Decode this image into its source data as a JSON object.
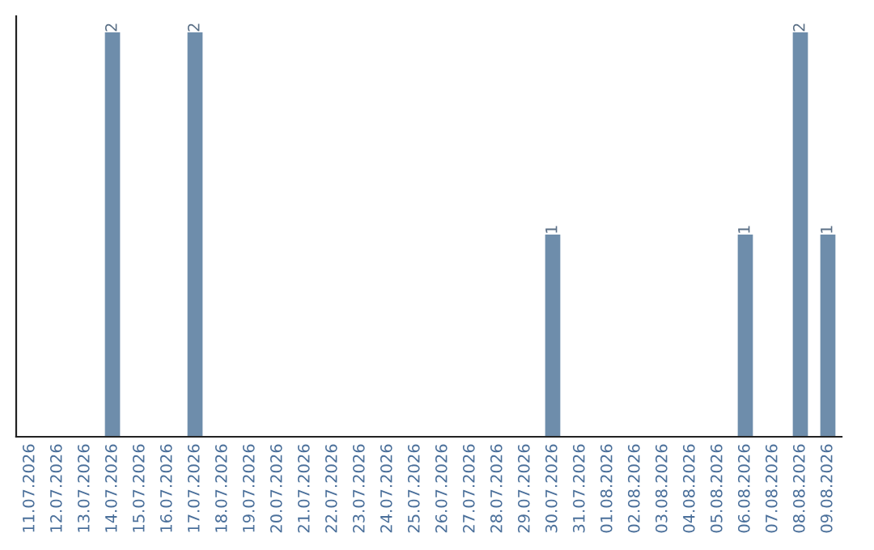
{
  "chart_data": {
    "type": "bar",
    "categories": [
      "11.07.2026",
      "12.07.2026",
      "13.07.2026",
      "14.07.2026",
      "15.07.2026",
      "16.07.2026",
      "17.07.2026",
      "18.07.2026",
      "19.07.2026",
      "20.07.2026",
      "21.07.2026",
      "22.07.2026",
      "23.07.2026",
      "24.07.2026",
      "25.07.2026",
      "26.07.2026",
      "27.07.2026",
      "28.07.2026",
      "29.07.2026",
      "30.07.2026",
      "31.07.2026",
      "01.08.2026",
      "02.08.2026",
      "03.08.2026",
      "04.08.2026",
      "05.08.2026",
      "06.08.2026",
      "07.08.2026",
      "08.08.2026",
      "09.08.2026"
    ],
    "values": [
      0,
      0,
      0,
      2,
      0,
      0,
      2,
      0,
      0,
      0,
      0,
      0,
      0,
      0,
      0,
      0,
      0,
      0,
      0,
      1,
      0,
      0,
      0,
      0,
      0,
      0,
      1,
      0,
      2,
      1
    ],
    "value_labels": [
      null,
      null,
      null,
      "2",
      null,
      null,
      "2",
      null,
      null,
      null,
      null,
      null,
      null,
      null,
      null,
      null,
      null,
      null,
      null,
      "1",
      null,
      null,
      null,
      null,
      null,
      null,
      "1",
      null,
      "2",
      "1"
    ],
    "color": "#6e8dab",
    "tick_labels": "x",
    "grid": false,
    "legend": false
  }
}
